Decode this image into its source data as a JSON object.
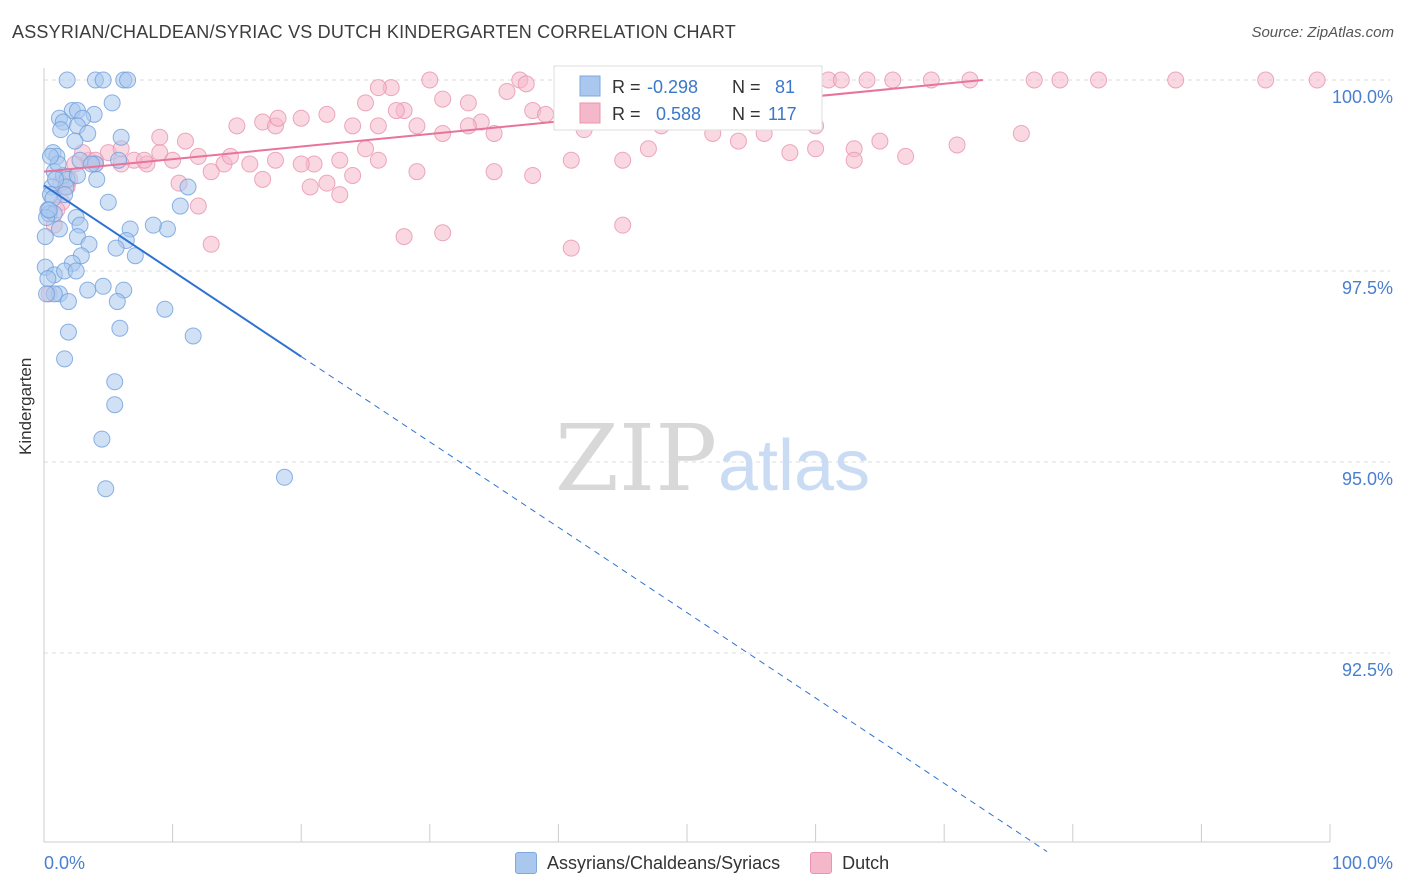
{
  "title": "ASSYRIAN/CHALDEAN/SYRIAC VS DUTCH KINDERGARTEN CORRELATION CHART",
  "source": "Source: ZipAtlas.com",
  "watermark": {
    "zip": "ZIP",
    "atlas": "atlas"
  },
  "colors": {
    "blue_fill": "#aac8ee",
    "blue_line": "#2d72d2",
    "blue_text": "#3a78c9",
    "pink_fill": "#f5b8cb",
    "pink_line": "#e8739b",
    "grid": "#dddddd",
    "axis_text": "#4a7fcf"
  },
  "stats": {
    "r_label": "R =",
    "n_label": "N =",
    "blue": {
      "r": "-0.298",
      "n": "81"
    },
    "pink": {
      "r": "0.588",
      "n": "117"
    }
  },
  "legend": {
    "blue": "Assyrians/Chaldeans/Syriacs",
    "pink": "Dutch"
  },
  "chart_data": {
    "type": "scatter",
    "title": "ASSYRIAN/CHALDEAN/SYRIAC VS DUTCH KINDERGARTEN CORRELATION CHART",
    "xlabel": "",
    "ylabel": "Kindergarten",
    "xlim": [
      0,
      100
    ],
    "ylim": [
      90.5,
      100.3
    ],
    "x_tick_labels": [
      "0.0%",
      "100.0%"
    ],
    "y_tick_labels": [
      "100.0%",
      "97.5%",
      "95.0%",
      "92.5%"
    ],
    "y_ticks": [
      100.0,
      97.5,
      95.0,
      92.5
    ],
    "grid": true,
    "legend_position": "bottom",
    "series": [
      {
        "name": "Assyrians/Chaldeans/Syriacs",
        "color": "#aac8ee",
        "trend": {
          "x": [
            0,
            20
          ],
          "y": [
            98.62,
            96.38
          ],
          "dashed_to": [
            78,
            89.9
          ]
        },
        "points": [
          [
            1.8,
            100
          ],
          [
            4,
            100
          ],
          [
            4.6,
            100
          ],
          [
            6.2,
            100
          ],
          [
            6.5,
            100
          ],
          [
            2.2,
            99.6
          ],
          [
            2.6,
            99.6
          ],
          [
            3.9,
            99.55
          ],
          [
            5.3,
            99.7
          ],
          [
            1.2,
            99.5
          ],
          [
            1.5,
            99.45
          ],
          [
            3,
            99.5
          ],
          [
            2.6,
            99.4
          ],
          [
            1.3,
            99.35
          ],
          [
            3.4,
            99.3
          ],
          [
            6,
            99.25
          ],
          [
            2.4,
            99.2
          ],
          [
            0.7,
            99.05
          ],
          [
            1,
            99.0
          ],
          [
            2.8,
            98.95
          ],
          [
            4,
            98.9
          ],
          [
            5.8,
            98.95
          ],
          [
            0.8,
            98.8
          ],
          [
            1.5,
            98.75
          ],
          [
            1.8,
            98.7
          ],
          [
            2.6,
            98.75
          ],
          [
            4.1,
            98.7
          ],
          [
            0.6,
            98.6
          ],
          [
            1.7,
            98.6
          ],
          [
            11.2,
            98.6
          ],
          [
            0.5,
            98.5
          ],
          [
            1.6,
            98.5
          ],
          [
            0.7,
            98.45
          ],
          [
            5,
            98.4
          ],
          [
            10.6,
            98.35
          ],
          [
            0.3,
            98.3
          ],
          [
            0.4,
            98.25
          ],
          [
            0.8,
            98.25
          ],
          [
            2.5,
            98.2
          ],
          [
            0.2,
            98.2
          ],
          [
            2.8,
            98.1
          ],
          [
            6.7,
            98.05
          ],
          [
            1.2,
            98.05
          ],
          [
            9.6,
            98.05
          ],
          [
            0.1,
            97.95
          ],
          [
            2.6,
            97.95
          ],
          [
            6.4,
            97.9
          ],
          [
            3.5,
            97.85
          ],
          [
            5.6,
            97.8
          ],
          [
            7.1,
            97.7
          ],
          [
            2.9,
            97.7
          ],
          [
            2.2,
            97.6
          ],
          [
            0.1,
            97.55
          ],
          [
            0.8,
            97.45
          ],
          [
            1.6,
            97.5
          ],
          [
            2.5,
            97.5
          ],
          [
            0.3,
            97.4
          ],
          [
            6.2,
            97.25
          ],
          [
            4.6,
            97.3
          ],
          [
            5.7,
            97.1
          ],
          [
            1.2,
            97.2
          ],
          [
            3.4,
            97.25
          ],
          [
            0.8,
            97.2
          ],
          [
            1.9,
            97.1
          ],
          [
            9.4,
            97.0
          ],
          [
            5.9,
            96.75
          ],
          [
            1.9,
            96.7
          ],
          [
            11.6,
            96.65
          ],
          [
            1.6,
            96.35
          ],
          [
            5.5,
            96.05
          ],
          [
            5.5,
            95.75
          ],
          [
            4.5,
            95.3
          ],
          [
            4.8,
            94.65
          ],
          [
            18.7,
            94.8
          ],
          [
            0.4,
            98.3
          ],
          [
            0.9,
            98.7
          ],
          [
            0.2,
            97.2
          ],
          [
            1.1,
            98.9
          ],
          [
            0.5,
            99.0
          ],
          [
            3.7,
            98.9
          ],
          [
            8.5,
            98.1
          ]
        ]
      },
      {
        "name": "Dutch",
        "color": "#f5b8cb",
        "trend": {
          "x": [
            0,
            73
          ],
          "y": [
            98.8,
            100.0
          ]
        },
        "points": [
          [
            30,
            100
          ],
          [
            37,
            100
          ],
          [
            42,
            100
          ],
          [
            45,
            100
          ],
          [
            47,
            100
          ],
          [
            50,
            100
          ],
          [
            52,
            100
          ],
          [
            57,
            100
          ],
          [
            61,
            100
          ],
          [
            62,
            100
          ],
          [
            64,
            100
          ],
          [
            66,
            100
          ],
          [
            69,
            100
          ],
          [
            72,
            100
          ],
          [
            77,
            100
          ],
          [
            79,
            100
          ],
          [
            82,
            100
          ],
          [
            88,
            100
          ],
          [
            95,
            100
          ],
          [
            99,
            100
          ],
          [
            53,
            99.95
          ],
          [
            27,
            99.9
          ],
          [
            36,
            99.85
          ],
          [
            41,
            99.85
          ],
          [
            43,
            99.8
          ],
          [
            46,
            99.7
          ],
          [
            31,
            99.75
          ],
          [
            25,
            99.7
          ],
          [
            28,
            99.6
          ],
          [
            33,
            99.7
          ],
          [
            38,
            99.6
          ],
          [
            22,
            99.55
          ],
          [
            20,
            99.5
          ],
          [
            17,
            99.45
          ],
          [
            15,
            99.4
          ],
          [
            18,
            99.4
          ],
          [
            24,
            99.4
          ],
          [
            26,
            99.4
          ],
          [
            29,
            99.4
          ],
          [
            34,
            99.45
          ],
          [
            39,
            99.55
          ],
          [
            42,
            99.35
          ],
          [
            48,
            99.4
          ],
          [
            52,
            99.3
          ],
          [
            55,
            99.6
          ],
          [
            60,
            99.4
          ],
          [
            63,
            99.1
          ],
          [
            65,
            99.2
          ],
          [
            71,
            99.15
          ],
          [
            63,
            98.95
          ],
          [
            58,
            99.05
          ],
          [
            35,
            99.3
          ],
          [
            31,
            99.3
          ],
          [
            26,
            98.95
          ],
          [
            23,
            98.95
          ],
          [
            21,
            98.9
          ],
          [
            18,
            98.95
          ],
          [
            16,
            98.9
          ],
          [
            14,
            98.9
          ],
          [
            12,
            99.0
          ],
          [
            10,
            98.95
          ],
          [
            9,
            99.05
          ],
          [
            8,
            98.9
          ],
          [
            7,
            98.95
          ],
          [
            6,
            98.9
          ],
          [
            5,
            99.05
          ],
          [
            4,
            98.9
          ],
          [
            3.5,
            98.95
          ],
          [
            3,
            99.05
          ],
          [
            2.4,
            98.9
          ],
          [
            2,
            98.7
          ],
          [
            1.8,
            98.6
          ],
          [
            1.3,
            98.65
          ],
          [
            1.4,
            98.4
          ],
          [
            1.0,
            98.3
          ],
          [
            0.8,
            98.1
          ],
          [
            11,
            99.2
          ],
          [
            13,
            98.8
          ],
          [
            17,
            98.7
          ],
          [
            20,
            98.9
          ],
          [
            22,
            98.65
          ],
          [
            24,
            98.75
          ],
          [
            29,
            98.8
          ],
          [
            35,
            98.8
          ],
          [
            38,
            98.75
          ],
          [
            41,
            98.95
          ],
          [
            45,
            98.95
          ],
          [
            47,
            99.1
          ],
          [
            54,
            99.2
          ],
          [
            56,
            99.3
          ],
          [
            60,
            99.1
          ],
          [
            67,
            99.0
          ],
          [
            76,
            99.3
          ],
          [
            9,
            99.25
          ],
          [
            6,
            99.1
          ],
          [
            4,
            98.95
          ],
          [
            10.5,
            98.65
          ],
          [
            12,
            98.35
          ],
          [
            13,
            97.85
          ],
          [
            23,
            98.5
          ],
          [
            25,
            99.1
          ],
          [
            28,
            97.95
          ],
          [
            31,
            98.0
          ],
          [
            41,
            97.8
          ],
          [
            45,
            98.1
          ],
          [
            20.7,
            98.6
          ],
          [
            27.4,
            99.6
          ],
          [
            33,
            99.4
          ],
          [
            58.5,
            100
          ],
          [
            46.5,
            99.95
          ],
          [
            14.5,
            99.0
          ],
          [
            7.8,
            98.95
          ],
          [
            18.2,
            99.5
          ],
          [
            26,
            99.9
          ],
          [
            53.5,
            99.7
          ],
          [
            37.5,
            99.95
          ],
          [
            0.4,
            97.2
          ]
        ]
      }
    ]
  }
}
